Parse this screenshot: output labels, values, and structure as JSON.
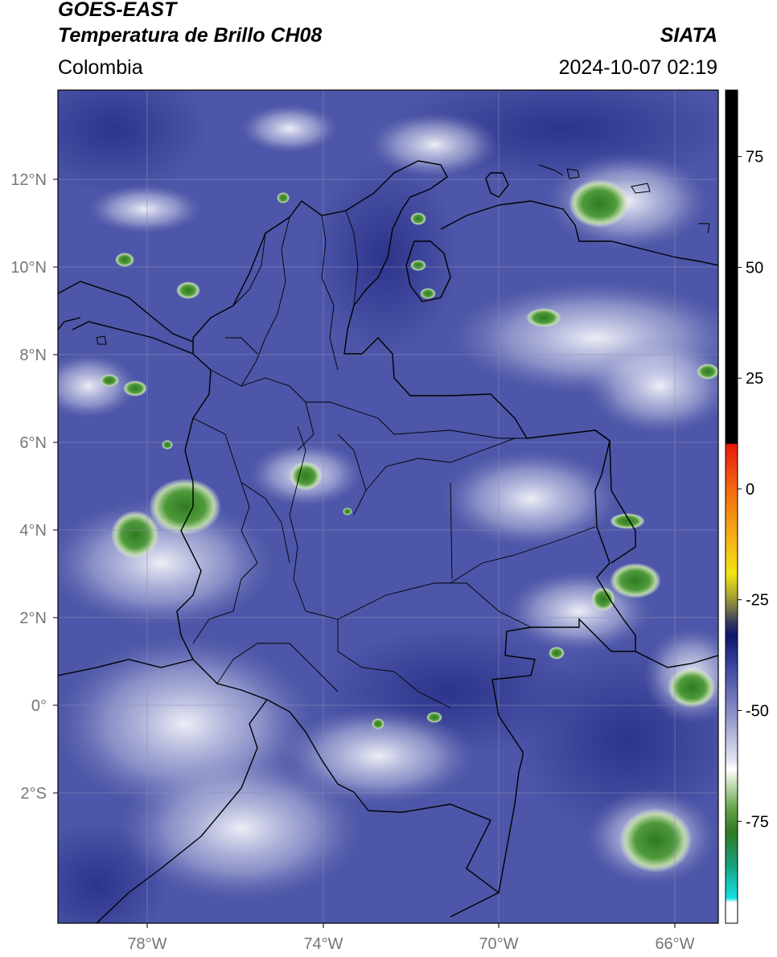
{
  "header": {
    "satellite": "GOES-EAST",
    "product": "Temperatura de Brillo CH08",
    "brand": "SIATA",
    "region": "Colombia",
    "timestamp": "2024-10-07 02:19"
  },
  "map": {
    "lat_labels": [
      "12°N",
      "10°N",
      "8°N",
      "6°N",
      "4°N",
      "2°N",
      "0°",
      "2°S"
    ],
    "lon_labels": [
      "78°W",
      "74°W",
      "70°W",
      "66°W"
    ],
    "background_color": "#4d56a8"
  },
  "colorbar": {
    "tick_labels": [
      "75",
      "50",
      "25",
      "0",
      "-25",
      "-50",
      "-75"
    ],
    "tick_values": [
      75,
      50,
      25,
      0,
      -25,
      -50,
      -75
    ],
    "range": [
      -98,
      90
    ],
    "colors": {
      "warm_top": "#000000",
      "red": "#e8170a",
      "orange": "#f68b12",
      "yellow": "#f2e312",
      "olive": "#8c8a3a",
      "dark_navy": "#141b6b",
      "blue": "#4b52a8",
      "white": "#ffffff",
      "green": "#3d8a2a",
      "teal": "#18a07c",
      "cyan": "#15e1e3"
    }
  }
}
